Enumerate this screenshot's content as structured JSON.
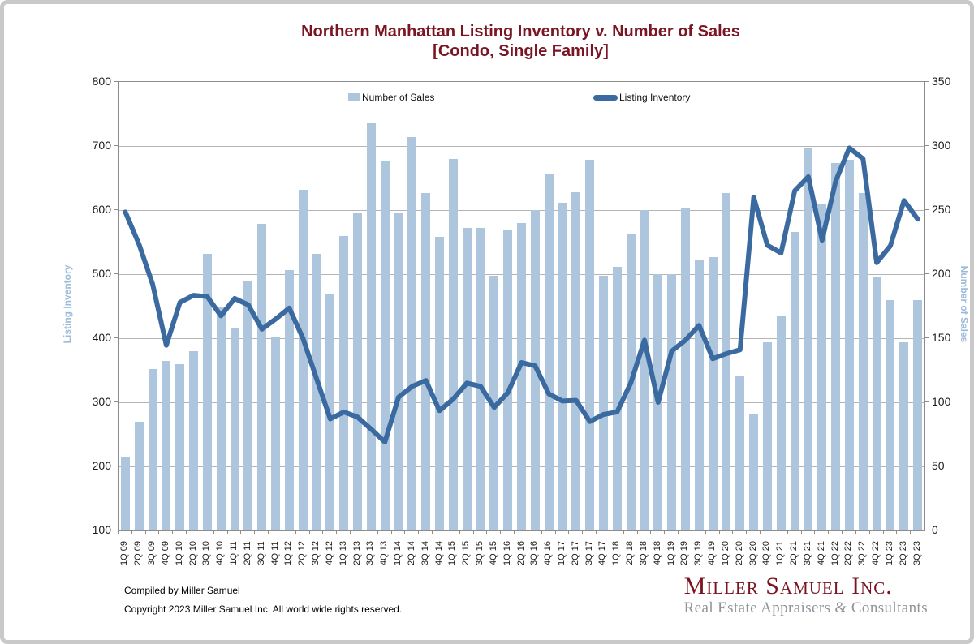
{
  "page": {
    "title_line1": "Northern Manhattan Listing Inventory v. Number of Sales",
    "title_line2": "[Condo, Single Family]"
  },
  "legend": {
    "sales_label": "Number of Sales",
    "inventory_label": "Listing Inventory"
  },
  "axes": {
    "left_title": "Listing Inventory",
    "right_title": "Number of Sales",
    "left_ticks": [
      800,
      700,
      600,
      500,
      400,
      300,
      200,
      100
    ],
    "right_ticks": [
      350,
      300,
      250,
      200,
      150,
      100,
      50,
      0
    ]
  },
  "footer": {
    "compiled": "Compiled by Miller Samuel",
    "copyright": "Copyright 2023 Miller Samuel Inc.  All world wide rights reserved."
  },
  "logo": {
    "name": "Miller Samuel Inc.",
    "tagline": "Real Estate Appraisers & Consultants"
  },
  "colors": {
    "bar_fill": "#aec6dd",
    "line_stroke": "#3b6aa0",
    "title_maroon": "#7a1523",
    "axis_title_blue": "#9cbbd9",
    "gridline_gray": "#b5b5b5",
    "logo_maroon": "#7a1420",
    "logo_gray": "#8e949a"
  },
  "chart_data": {
    "type": "bar",
    "title": "Northern Manhattan Listing Inventory v. Number of Sales [Condo, Single Family]",
    "grid": true,
    "legend_position": "top-inside",
    "categories": [
      "1Q 09",
      "2Q 09",
      "3Q 09",
      "4Q 09",
      "1Q 10",
      "2Q 10",
      "3Q 10",
      "4Q 10",
      "1Q 11",
      "2Q 11",
      "3Q 11",
      "4Q 11",
      "1Q 12",
      "2Q 12",
      "3Q 12",
      "4Q 12",
      "1Q 13",
      "2Q 13",
      "3Q 13",
      "4Q 13",
      "1Q 14",
      "2Q 14",
      "3Q 14",
      "4Q 14",
      "1Q 15",
      "2Q 15",
      "3Q 15",
      "4Q 15",
      "1Q 16",
      "2Q 16",
      "3Q 16",
      "4Q 16",
      "1Q 17",
      "2Q 17",
      "3Q 17",
      "4Q 17",
      "1Q 18",
      "2Q 18",
      "3Q 18",
      "4Q 18",
      "1Q 19",
      "2Q 19",
      "3Q 19",
      "4Q 19",
      "1Q 20",
      "2Q 20",
      "3Q 20",
      "4Q 20",
      "1Q 21",
      "2Q 21",
      "3Q 21",
      "4Q 21",
      "1Q 22",
      "2Q 22",
      "3Q 22",
      "4Q 22",
      "1Q 23",
      "2Q 23",
      "3Q 23"
    ],
    "left_axis": {
      "label": "Listing Inventory",
      "range": [
        100,
        800
      ],
      "tick_step": 100
    },
    "right_axis": {
      "label": "Number of Sales",
      "range": [
        0,
        350
      ],
      "tick_step": 50
    },
    "series": [
      {
        "name": "Number of Sales",
        "type": "bar",
        "axis": "right",
        "values": [
          57,
          85,
          126,
          132,
          130,
          140,
          216,
          175,
          158,
          194,
          239,
          151,
          203,
          266,
          216,
          184,
          230,
          248,
          318,
          288,
          248,
          307,
          263,
          229,
          290,
          236,
          236,
          199,
          234,
          240,
          250,
          278,
          256,
          264,
          289,
          199,
          206,
          231,
          250,
          200,
          200,
          251,
          211,
          213,
          263,
          121,
          91,
          147,
          168,
          233,
          298,
          255,
          287,
          289,
          263,
          198,
          180,
          147,
          180
        ]
      },
      {
        "name": "Listing Inventory",
        "type": "line",
        "axis": "left",
        "values": [
          597,
          547,
          484,
          389,
          456,
          467,
          465,
          435,
          462,
          452,
          414,
          430,
          447,
          400,
          337,
          274,
          285,
          277,
          258,
          238,
          308,
          325,
          334,
          287,
          305,
          330,
          325,
          292,
          315,
          362,
          357,
          313,
          302,
          303,
          270,
          281,
          285,
          330,
          397,
          300,
          380,
          397,
          420,
          368,
          376,
          382,
          620,
          545,
          533,
          630,
          652,
          553,
          645,
          697,
          680,
          518,
          544,
          615,
          586
        ]
      }
    ]
  }
}
